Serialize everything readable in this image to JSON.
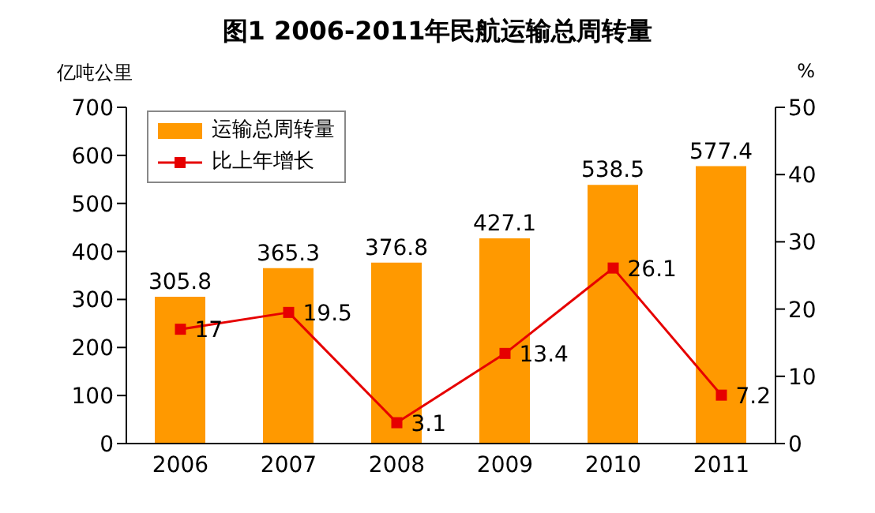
{
  "chart_data": {
    "type": "bar",
    "title": "图1 2006-2011年民航运输总周转量",
    "ylabel": "亿吨公里",
    "y2label": "%",
    "categories": [
      "2006",
      "2007",
      "2008",
      "2009",
      "2010",
      "2011"
    ],
    "series": [
      {
        "name": "运输总周转量",
        "color": "#ff9900",
        "values": [
          305.8,
          365.3,
          376.8,
          427.1,
          538.5,
          577.4
        ]
      },
      {
        "name": "比上年增长",
        "type": "line",
        "axis": "y2",
        "color": "#e60000",
        "values": [
          17,
          19.5,
          3.1,
          13.4,
          26.1,
          7.2
        ],
        "marker": "square"
      }
    ],
    "ylim": [
      0,
      700
    ],
    "yticks": [
      0,
      100,
      200,
      300,
      400,
      500,
      600,
      700
    ],
    "y2lim": [
      0,
      50
    ],
    "y2ticks": [
      0,
      10,
      20,
      30,
      40,
      50
    ],
    "data_labels": true,
    "legend": "top left",
    "grid": false
  }
}
